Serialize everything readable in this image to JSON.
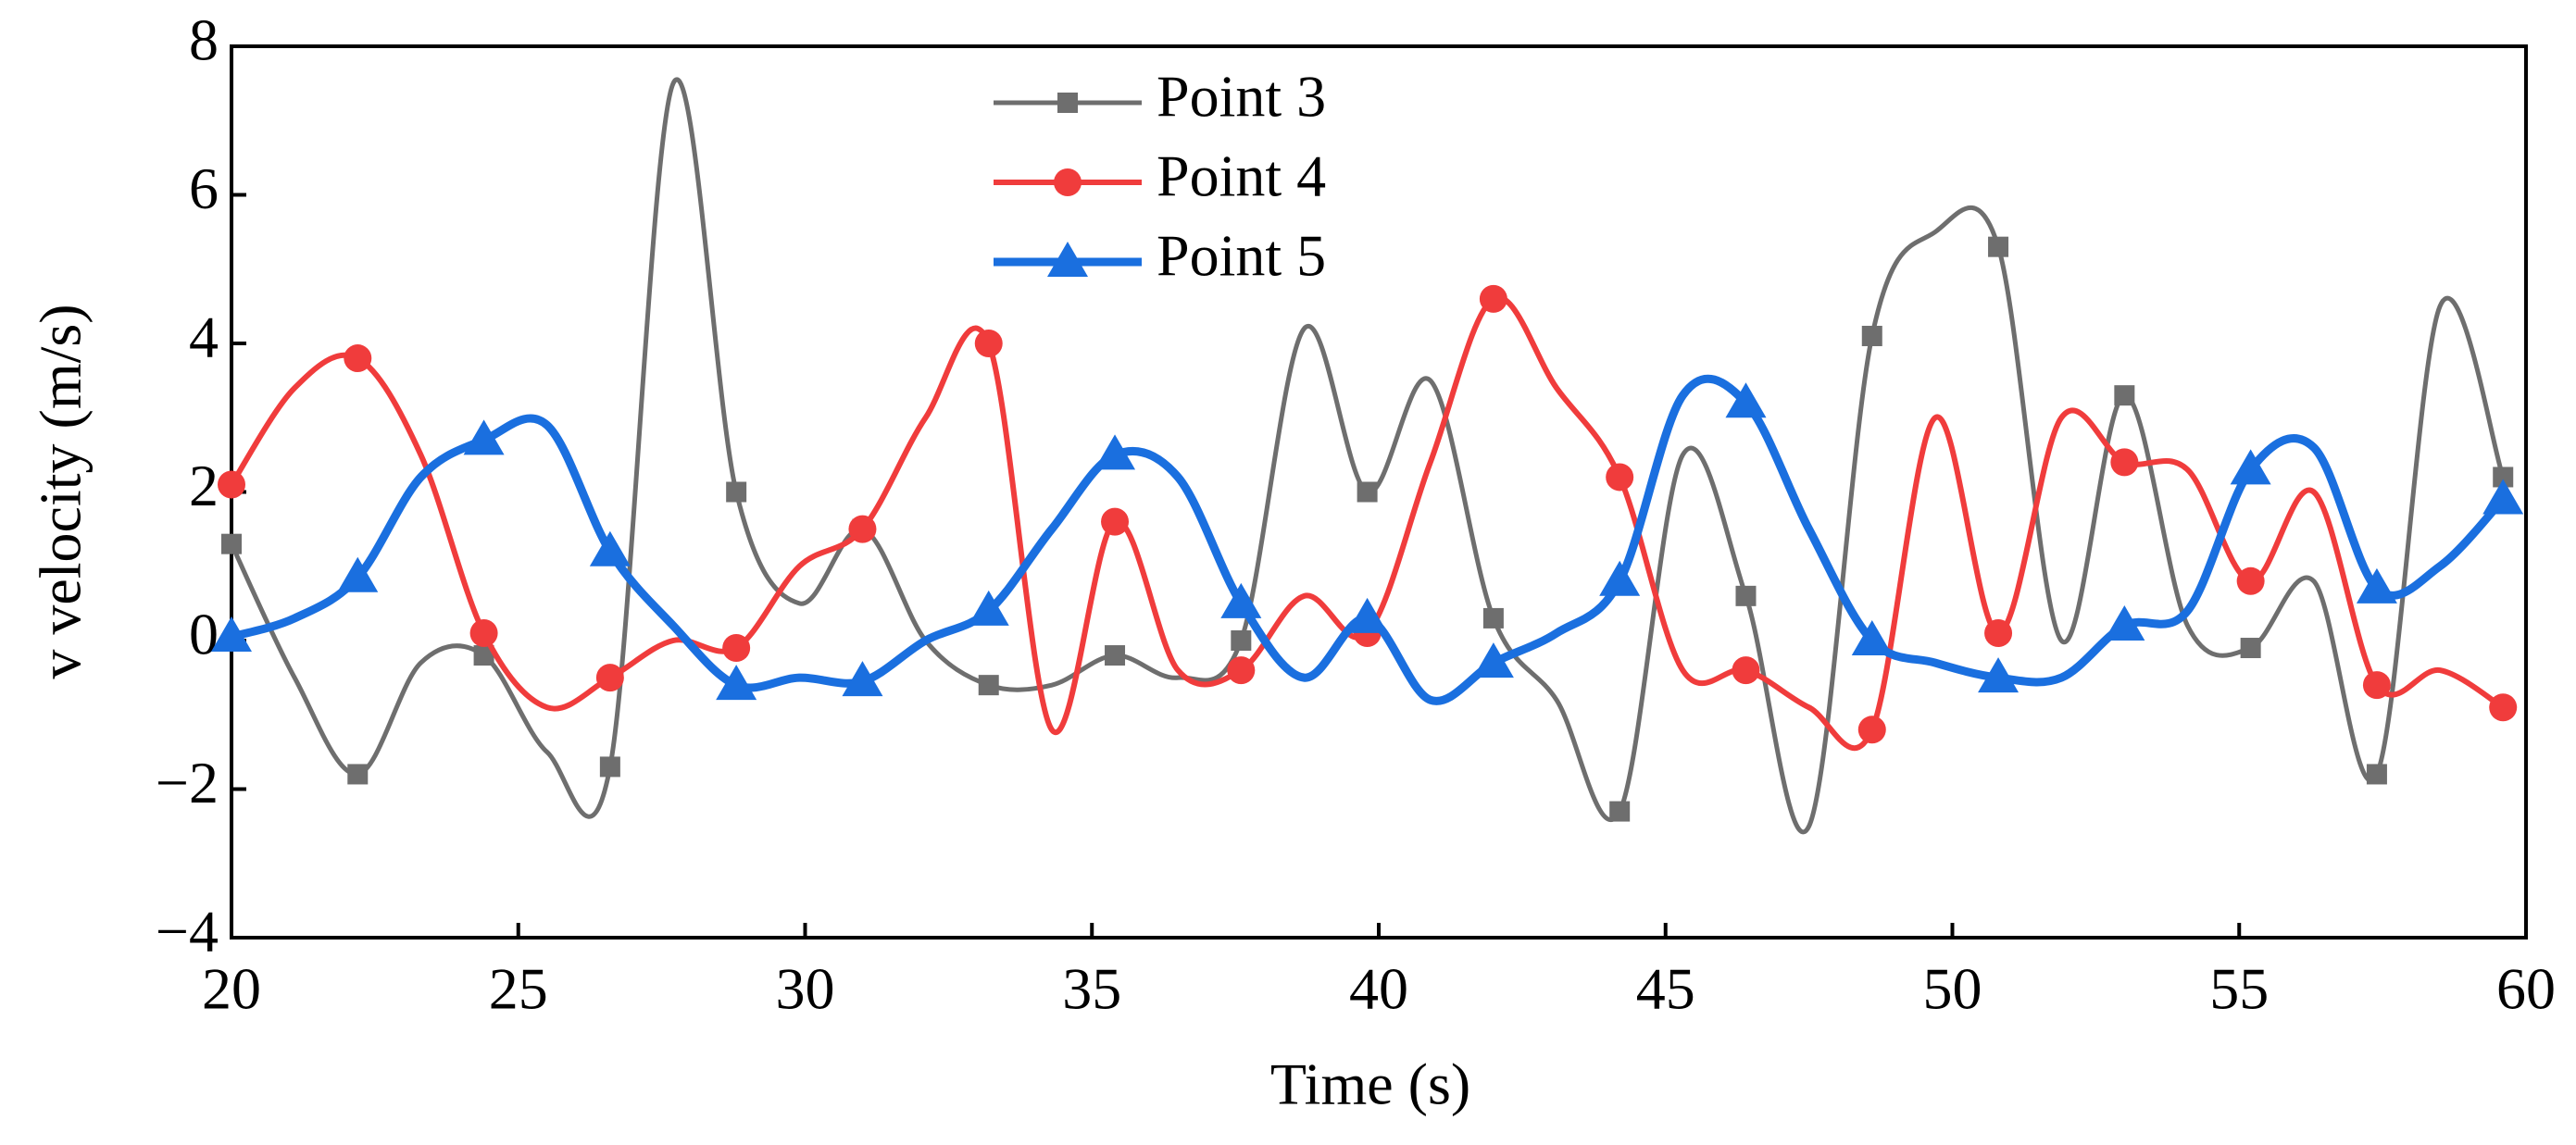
{
  "chart_data": {
    "type": "line",
    "x_label": "Time (s)",
    "y_label": "v velocity (m/s)",
    "x": [
      20,
      21.1,
      22.2,
      23.3,
      24.4,
      25.5,
      26.6,
      27.7,
      28.8,
      29.9,
      31,
      32.1,
      33.2,
      34.3,
      35.4,
      36.5,
      37.6,
      38.7,
      39.8,
      40.9,
      42,
      43.1,
      44.2,
      45.3,
      46.4,
      47.5,
      48.6,
      49.7,
      50.8,
      51.9,
      53,
      54.1,
      55.2,
      56.3,
      57.4,
      58.5,
      59.6
    ],
    "series": [
      {
        "name": "Point 3",
        "color": "#6e6e6e",
        "marker": "square",
        "values": [
          1.3,
          -0.5,
          -1.8,
          -0.3,
          -0.2,
          -1.5,
          -1.7,
          7.5,
          2.0,
          0.5,
          1.5,
          0,
          -0.6,
          -0.6,
          -0.2,
          -0.5,
          0,
          4.2,
          2.0,
          3.5,
          0.3,
          -0.8,
          -2.3,
          2.5,
          0.6,
          -2.5,
          4.1,
          5.5,
          5.3,
          0,
          3.3,
          0.2,
          -0.1,
          0.8,
          -1.8,
          4.5,
          2.2
        ]
      },
      {
        "name": "Point 4",
        "color": "#f03c3c",
        "marker": "circle",
        "values": [
          2.1,
          3.4,
          3.8,
          2.5,
          0.1,
          -0.9,
          -0.5,
          0,
          -0.1,
          1.0,
          1.5,
          3.0,
          4.0,
          -1.2,
          1.6,
          -0.4,
          -0.4,
          0.6,
          0.1,
          2.4,
          4.6,
          3.4,
          2.2,
          -0.4,
          -0.4,
          -0.9,
          -1.2,
          3.0,
          0.1,
          3.0,
          2.4,
          2.3,
          0.8,
          2.0,
          -0.6,
          -0.4,
          -0.9
        ]
      },
      {
        "name": "Point 5",
        "color": "#1a6fdf",
        "marker": "triangle",
        "values": [
          0.05,
          0.3,
          0.85,
          2.2,
          2.7,
          2.9,
          1.2,
          0.2,
          -0.6,
          -0.5,
          -0.55,
          0,
          0.4,
          1.5,
          2.5,
          2.2,
          0.5,
          -0.5,
          0.3,
          -0.8,
          -0.3,
          0.1,
          0.8,
          3.3,
          3.2,
          1.5,
          0,
          -0.3,
          -0.5,
          -0.5,
          0.2,
          0.4,
          2.3,
          2.6,
          0.7,
          1.0,
          1.9
        ]
      }
    ],
    "xlim": [
      20,
      60
    ],
    "xticks": [
      20,
      25,
      30,
      35,
      40,
      45,
      50,
      55,
      60
    ],
    "ylim": [
      -4,
      8
    ],
    "yticks": [
      {
        "value": -4,
        "label": "−4"
      },
      {
        "value": -2,
        "label": "−2"
      },
      0,
      2,
      4,
      6,
      8
    ],
    "grid": false,
    "legend": "top"
  }
}
